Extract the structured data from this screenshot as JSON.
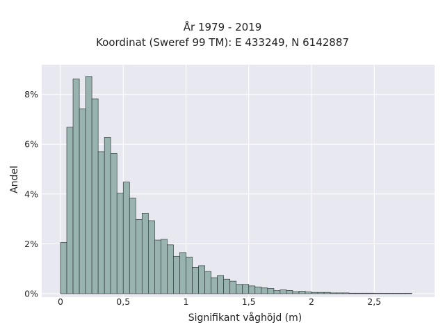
{
  "chart_data": {
    "type": "bar",
    "title": "År 1979 - 2019",
    "subtitle": "Koordinat (Sweref 99 TM): E 433249, N 6142887",
    "xlabel": "Signifikant våghöjd (m)",
    "ylabel": "Andel",
    "xlim": [
      -0.1,
      2.98
    ],
    "ylim": [
      0,
      9.0
    ],
    "bin_width": 0.05,
    "bin_start": 0,
    "values": [
      2.05,
      6.68,
      8.62,
      7.42,
      8.72,
      7.82,
      5.7,
      6.27,
      5.63,
      4.03,
      4.48,
      3.83,
      2.98,
      3.23,
      2.93,
      2.15,
      2.18,
      1.96,
      1.5,
      1.65,
      1.47,
      1.05,
      1.12,
      0.89,
      0.64,
      0.73,
      0.58,
      0.5,
      0.37,
      0.37,
      0.31,
      0.27,
      0.23,
      0.21,
      0.12,
      0.15,
      0.13,
      0.08,
      0.1,
      0.07,
      0.05,
      0.05,
      0.05,
      0.03,
      0.03,
      0.03,
      0.02,
      0.02,
      0.02,
      0.02,
      0.01,
      0.01,
      0.01,
      0.01,
      0.01,
      0.01
    ],
    "x_ticks": [
      {
        "value": 0,
        "label": "0"
      },
      {
        "value": 0.5,
        "label": "0,5"
      },
      {
        "value": 1,
        "label": "1"
      },
      {
        "value": 1.5,
        "label": "1,5"
      },
      {
        "value": 2,
        "label": "2"
      },
      {
        "value": 2.5,
        "label": "2,5"
      }
    ],
    "y_ticks": [
      {
        "value": 0,
        "label": "0%"
      },
      {
        "value": 2,
        "label": "2%"
      },
      {
        "value": 4,
        "label": "4%"
      },
      {
        "value": 6,
        "label": "6%"
      },
      {
        "value": 8,
        "label": "8%"
      }
    ],
    "grid": true,
    "colors": {
      "plot_background": "#e8e8f1",
      "grid": "#ffffff",
      "bar_fill": "#99b3b1",
      "bar_edge": "#2d3b3a"
    }
  }
}
